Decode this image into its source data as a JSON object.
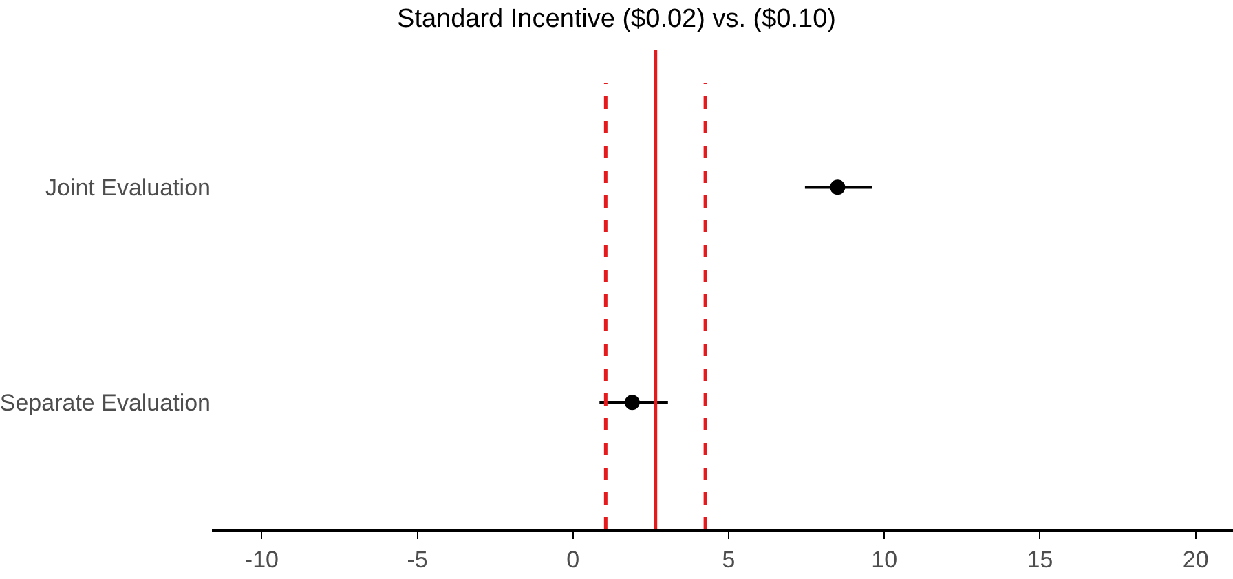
{
  "chart_data": {
    "type": "scatter",
    "title": "Standard Incentive ($0.02) vs. ($0.10)",
    "categories": [
      "Joint Evaluation",
      "Separate Evaluation"
    ],
    "orientation": "horizontal",
    "series": [
      {
        "color": "#000000",
        "values": [
          8.5,
          1.9
        ],
        "errors": [
          [
            7.45,
            9.6
          ],
          [
            0.85,
            3.05
          ]
        ]
      }
    ],
    "xlim": [
      -11.6,
      21.2
    ],
    "xticks": [
      -10,
      -5,
      0,
      5,
      10,
      15,
      20
    ],
    "ref_lines": [
      {
        "axis": "x",
        "value": 2.65,
        "color": "#e41a1c",
        "line_style": "solid"
      },
      {
        "axis": "x",
        "value": 1.05,
        "color": "#e41a1c",
        "line_style": "dashed"
      },
      {
        "axis": "x",
        "value": 4.25,
        "color": "#e41a1c",
        "line_style": "dashed"
      }
    ],
    "marker": "circle"
  }
}
